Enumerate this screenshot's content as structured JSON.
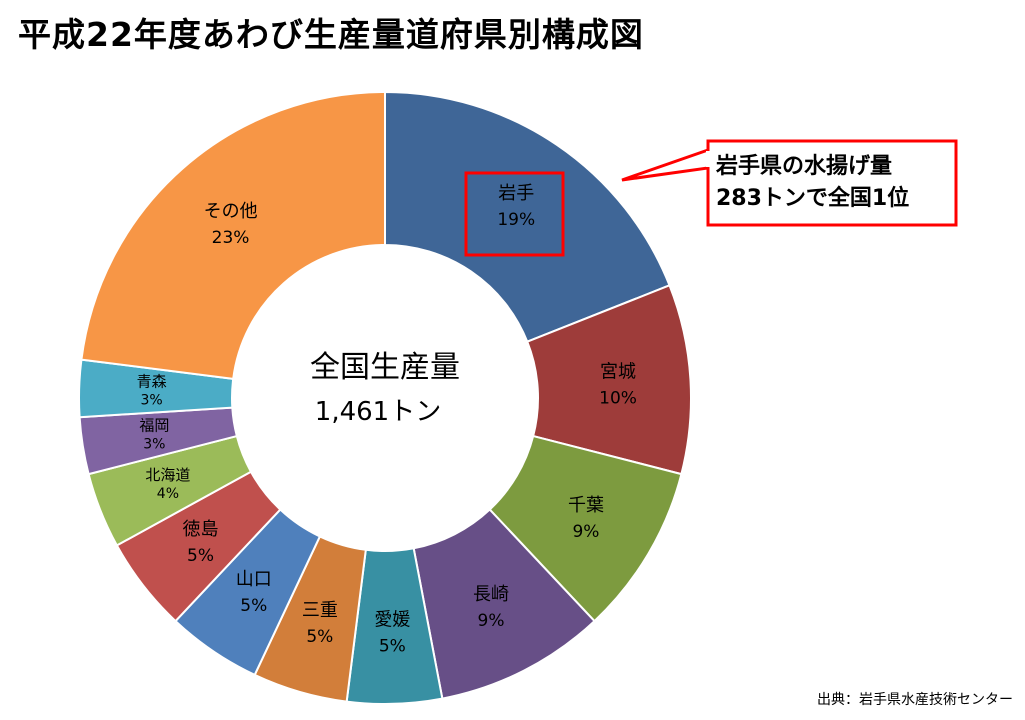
{
  "title": "平成22年度あわび生産量道府県別構成図",
  "source": "出典：岩手県水産技術センター",
  "callout": {
    "line1": "岩手県の水揚げ量",
    "line2": "283トンで全国1位"
  },
  "chart_data": {
    "type": "pie",
    "donut": true,
    "center_label": "全国生産量",
    "center_value": "1,461トン",
    "slices": [
      {
        "label": "岩手",
        "percent_label": "19%",
        "value": 19,
        "color": "#3F6697"
      },
      {
        "label": "宮城",
        "percent_label": "10%",
        "value": 10,
        "color": "#9E3C3A"
      },
      {
        "label": "千葉",
        "percent_label": "9%",
        "value": 9,
        "color": "#7D9B3F"
      },
      {
        "label": "長崎",
        "percent_label": "9%",
        "value": 9,
        "color": "#674F87"
      },
      {
        "label": "愛媛",
        "percent_label": "5%",
        "value": 5,
        "color": "#3890A3"
      },
      {
        "label": "三重",
        "percent_label": "5%",
        "value": 5,
        "color": "#D27E3A"
      },
      {
        "label": "山口",
        "percent_label": "5%",
        "value": 5,
        "color": "#4F80BC"
      },
      {
        "label": "徳島",
        "percent_label": "5%",
        "value": 5,
        "color": "#C0504D"
      },
      {
        "label": "北海道",
        "percent_label": "4%",
        "value": 4,
        "color": "#9BBB59"
      },
      {
        "label": "福岡",
        "percent_label": "3%",
        "value": 3,
        "color": "#8064A2"
      },
      {
        "label": "青森",
        "percent_label": "3%",
        "value": 3,
        "color": "#4BACC6"
      },
      {
        "label": "その他",
        "percent_label": "23%",
        "value": 23,
        "color": "#F79646"
      }
    ]
  }
}
